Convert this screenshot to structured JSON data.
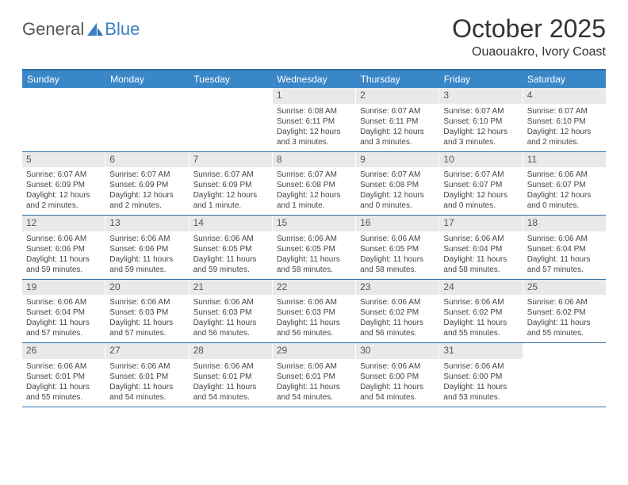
{
  "logo": {
    "text1": "General",
    "text2": "Blue"
  },
  "title": "October 2025",
  "location": "Ouaouakro, Ivory Coast",
  "colors": {
    "header_bg": "#3a87c8",
    "header_text": "#ffffff",
    "border": "#2f6fa8",
    "daynum_bg": "#e8e9ea",
    "body_text": "#444444",
    "logo_gray": "#555555",
    "logo_blue": "#3c7fbf"
  },
  "day_names": [
    "Sunday",
    "Monday",
    "Tuesday",
    "Wednesday",
    "Thursday",
    "Friday",
    "Saturday"
  ],
  "weeks": [
    [
      {
        "n": "",
        "s": "",
        "ss": "",
        "d": ""
      },
      {
        "n": "",
        "s": "",
        "ss": "",
        "d": ""
      },
      {
        "n": "",
        "s": "",
        "ss": "",
        "d": ""
      },
      {
        "n": "1",
        "s": "Sunrise: 6:08 AM",
        "ss": "Sunset: 6:11 PM",
        "d": "Daylight: 12 hours and 3 minutes."
      },
      {
        "n": "2",
        "s": "Sunrise: 6:07 AM",
        "ss": "Sunset: 6:11 PM",
        "d": "Daylight: 12 hours and 3 minutes."
      },
      {
        "n": "3",
        "s": "Sunrise: 6:07 AM",
        "ss": "Sunset: 6:10 PM",
        "d": "Daylight: 12 hours and 3 minutes."
      },
      {
        "n": "4",
        "s": "Sunrise: 6:07 AM",
        "ss": "Sunset: 6:10 PM",
        "d": "Daylight: 12 hours and 2 minutes."
      }
    ],
    [
      {
        "n": "5",
        "s": "Sunrise: 6:07 AM",
        "ss": "Sunset: 6:09 PM",
        "d": "Daylight: 12 hours and 2 minutes."
      },
      {
        "n": "6",
        "s": "Sunrise: 6:07 AM",
        "ss": "Sunset: 6:09 PM",
        "d": "Daylight: 12 hours and 2 minutes."
      },
      {
        "n": "7",
        "s": "Sunrise: 6:07 AM",
        "ss": "Sunset: 6:09 PM",
        "d": "Daylight: 12 hours and 1 minute."
      },
      {
        "n": "8",
        "s": "Sunrise: 6:07 AM",
        "ss": "Sunset: 6:08 PM",
        "d": "Daylight: 12 hours and 1 minute."
      },
      {
        "n": "9",
        "s": "Sunrise: 6:07 AM",
        "ss": "Sunset: 6:08 PM",
        "d": "Daylight: 12 hours and 0 minutes."
      },
      {
        "n": "10",
        "s": "Sunrise: 6:07 AM",
        "ss": "Sunset: 6:07 PM",
        "d": "Daylight: 12 hours and 0 minutes."
      },
      {
        "n": "11",
        "s": "Sunrise: 6:06 AM",
        "ss": "Sunset: 6:07 PM",
        "d": "Daylight: 12 hours and 0 minutes."
      }
    ],
    [
      {
        "n": "12",
        "s": "Sunrise: 6:06 AM",
        "ss": "Sunset: 6:06 PM",
        "d": "Daylight: 11 hours and 59 minutes."
      },
      {
        "n": "13",
        "s": "Sunrise: 6:06 AM",
        "ss": "Sunset: 6:06 PM",
        "d": "Daylight: 11 hours and 59 minutes."
      },
      {
        "n": "14",
        "s": "Sunrise: 6:06 AM",
        "ss": "Sunset: 6:05 PM",
        "d": "Daylight: 11 hours and 59 minutes."
      },
      {
        "n": "15",
        "s": "Sunrise: 6:06 AM",
        "ss": "Sunset: 6:05 PM",
        "d": "Daylight: 11 hours and 58 minutes."
      },
      {
        "n": "16",
        "s": "Sunrise: 6:06 AM",
        "ss": "Sunset: 6:05 PM",
        "d": "Daylight: 11 hours and 58 minutes."
      },
      {
        "n": "17",
        "s": "Sunrise: 6:06 AM",
        "ss": "Sunset: 6:04 PM",
        "d": "Daylight: 11 hours and 58 minutes."
      },
      {
        "n": "18",
        "s": "Sunrise: 6:06 AM",
        "ss": "Sunset: 6:04 PM",
        "d": "Daylight: 11 hours and 57 minutes."
      }
    ],
    [
      {
        "n": "19",
        "s": "Sunrise: 6:06 AM",
        "ss": "Sunset: 6:04 PM",
        "d": "Daylight: 11 hours and 57 minutes."
      },
      {
        "n": "20",
        "s": "Sunrise: 6:06 AM",
        "ss": "Sunset: 6:03 PM",
        "d": "Daylight: 11 hours and 57 minutes."
      },
      {
        "n": "21",
        "s": "Sunrise: 6:06 AM",
        "ss": "Sunset: 6:03 PM",
        "d": "Daylight: 11 hours and 56 minutes."
      },
      {
        "n": "22",
        "s": "Sunrise: 6:06 AM",
        "ss": "Sunset: 6:03 PM",
        "d": "Daylight: 11 hours and 56 minutes."
      },
      {
        "n": "23",
        "s": "Sunrise: 6:06 AM",
        "ss": "Sunset: 6:02 PM",
        "d": "Daylight: 11 hours and 56 minutes."
      },
      {
        "n": "24",
        "s": "Sunrise: 6:06 AM",
        "ss": "Sunset: 6:02 PM",
        "d": "Daylight: 11 hours and 55 minutes."
      },
      {
        "n": "25",
        "s": "Sunrise: 6:06 AM",
        "ss": "Sunset: 6:02 PM",
        "d": "Daylight: 11 hours and 55 minutes."
      }
    ],
    [
      {
        "n": "26",
        "s": "Sunrise: 6:06 AM",
        "ss": "Sunset: 6:01 PM",
        "d": "Daylight: 11 hours and 55 minutes."
      },
      {
        "n": "27",
        "s": "Sunrise: 6:06 AM",
        "ss": "Sunset: 6:01 PM",
        "d": "Daylight: 11 hours and 54 minutes."
      },
      {
        "n": "28",
        "s": "Sunrise: 6:06 AM",
        "ss": "Sunset: 6:01 PM",
        "d": "Daylight: 11 hours and 54 minutes."
      },
      {
        "n": "29",
        "s": "Sunrise: 6:06 AM",
        "ss": "Sunset: 6:01 PM",
        "d": "Daylight: 11 hours and 54 minutes."
      },
      {
        "n": "30",
        "s": "Sunrise: 6:06 AM",
        "ss": "Sunset: 6:00 PM",
        "d": "Daylight: 11 hours and 54 minutes."
      },
      {
        "n": "31",
        "s": "Sunrise: 6:06 AM",
        "ss": "Sunset: 6:00 PM",
        "d": "Daylight: 11 hours and 53 minutes."
      },
      {
        "n": "",
        "s": "",
        "ss": "",
        "d": ""
      }
    ]
  ]
}
